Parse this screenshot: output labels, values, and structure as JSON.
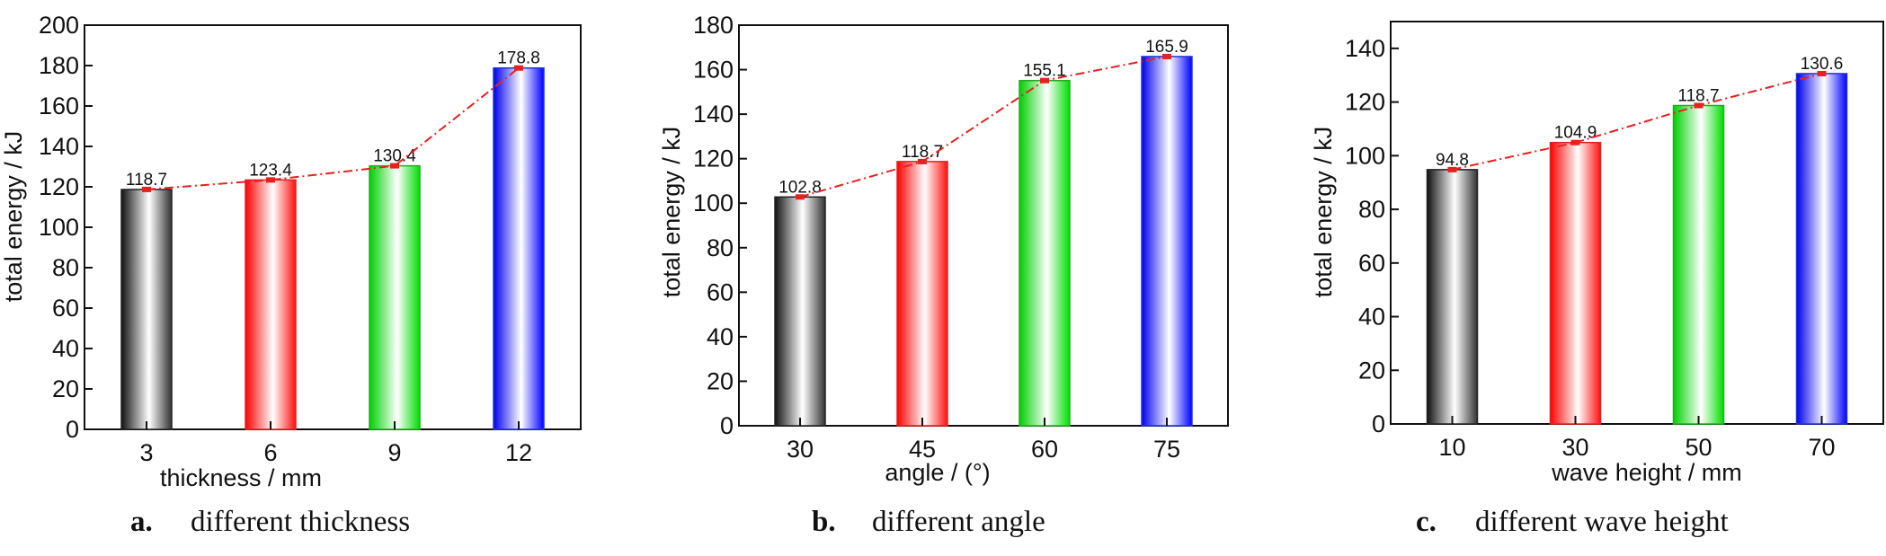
{
  "colors": {
    "black_bar": "#1a1a1a",
    "red_bar": "#ff0000",
    "green_bar": "#00dd00",
    "blue_bar": "#0000ff",
    "trend_line": "#e8201e"
  },
  "chart_data": [
    {
      "type": "bar",
      "caption_letter": "a.",
      "caption_text": "different thickness",
      "xlabel": "thickness / mm",
      "ylabel": "total energy / kJ",
      "categories": [
        "3",
        "6",
        "9",
        "12"
      ],
      "values": [
        118.7,
        123.4,
        130.4,
        178.8
      ],
      "value_labels": [
        "118.7",
        "123.4",
        "130.4",
        "178.8"
      ],
      "ylim": [
        0,
        200
      ],
      "yticks": [
        0,
        20,
        40,
        60,
        80,
        100,
        120,
        140,
        160,
        180,
        200
      ],
      "bar_colors": [
        "black",
        "red",
        "green",
        "blue"
      ],
      "trend_line": true
    },
    {
      "type": "bar",
      "caption_letter": "b.",
      "caption_text": "different angle",
      "xlabel": "angle / (°)",
      "ylabel": "total energy / kJ",
      "categories": [
        "30",
        "45",
        "60",
        "75"
      ],
      "values": [
        102.8,
        118.7,
        155.1,
        165.9
      ],
      "value_labels": [
        "102.8",
        "118.7",
        "155.1",
        "165.9"
      ],
      "ylim": [
        0,
        180
      ],
      "yticks": [
        0,
        20,
        40,
        60,
        80,
        100,
        120,
        140,
        160,
        180
      ],
      "bar_colors": [
        "black",
        "red",
        "green",
        "blue"
      ],
      "trend_line": true
    },
    {
      "type": "bar",
      "caption_letter": "c.",
      "caption_text": "different wave height",
      "xlabel": "wave height / mm",
      "ylabel": "total energy / kJ",
      "categories": [
        "10",
        "30",
        "50",
        "70"
      ],
      "values": [
        94.8,
        104.9,
        118.7,
        130.6
      ],
      "value_labels": [
        "94.8",
        "104.9",
        "118.7",
        "130.6"
      ],
      "ylim": [
        0,
        150
      ],
      "yticks": [
        0,
        20,
        40,
        60,
        80,
        100,
        120,
        140
      ],
      "bar_colors": [
        "black",
        "red",
        "green",
        "blue"
      ],
      "trend_line": true
    }
  ]
}
